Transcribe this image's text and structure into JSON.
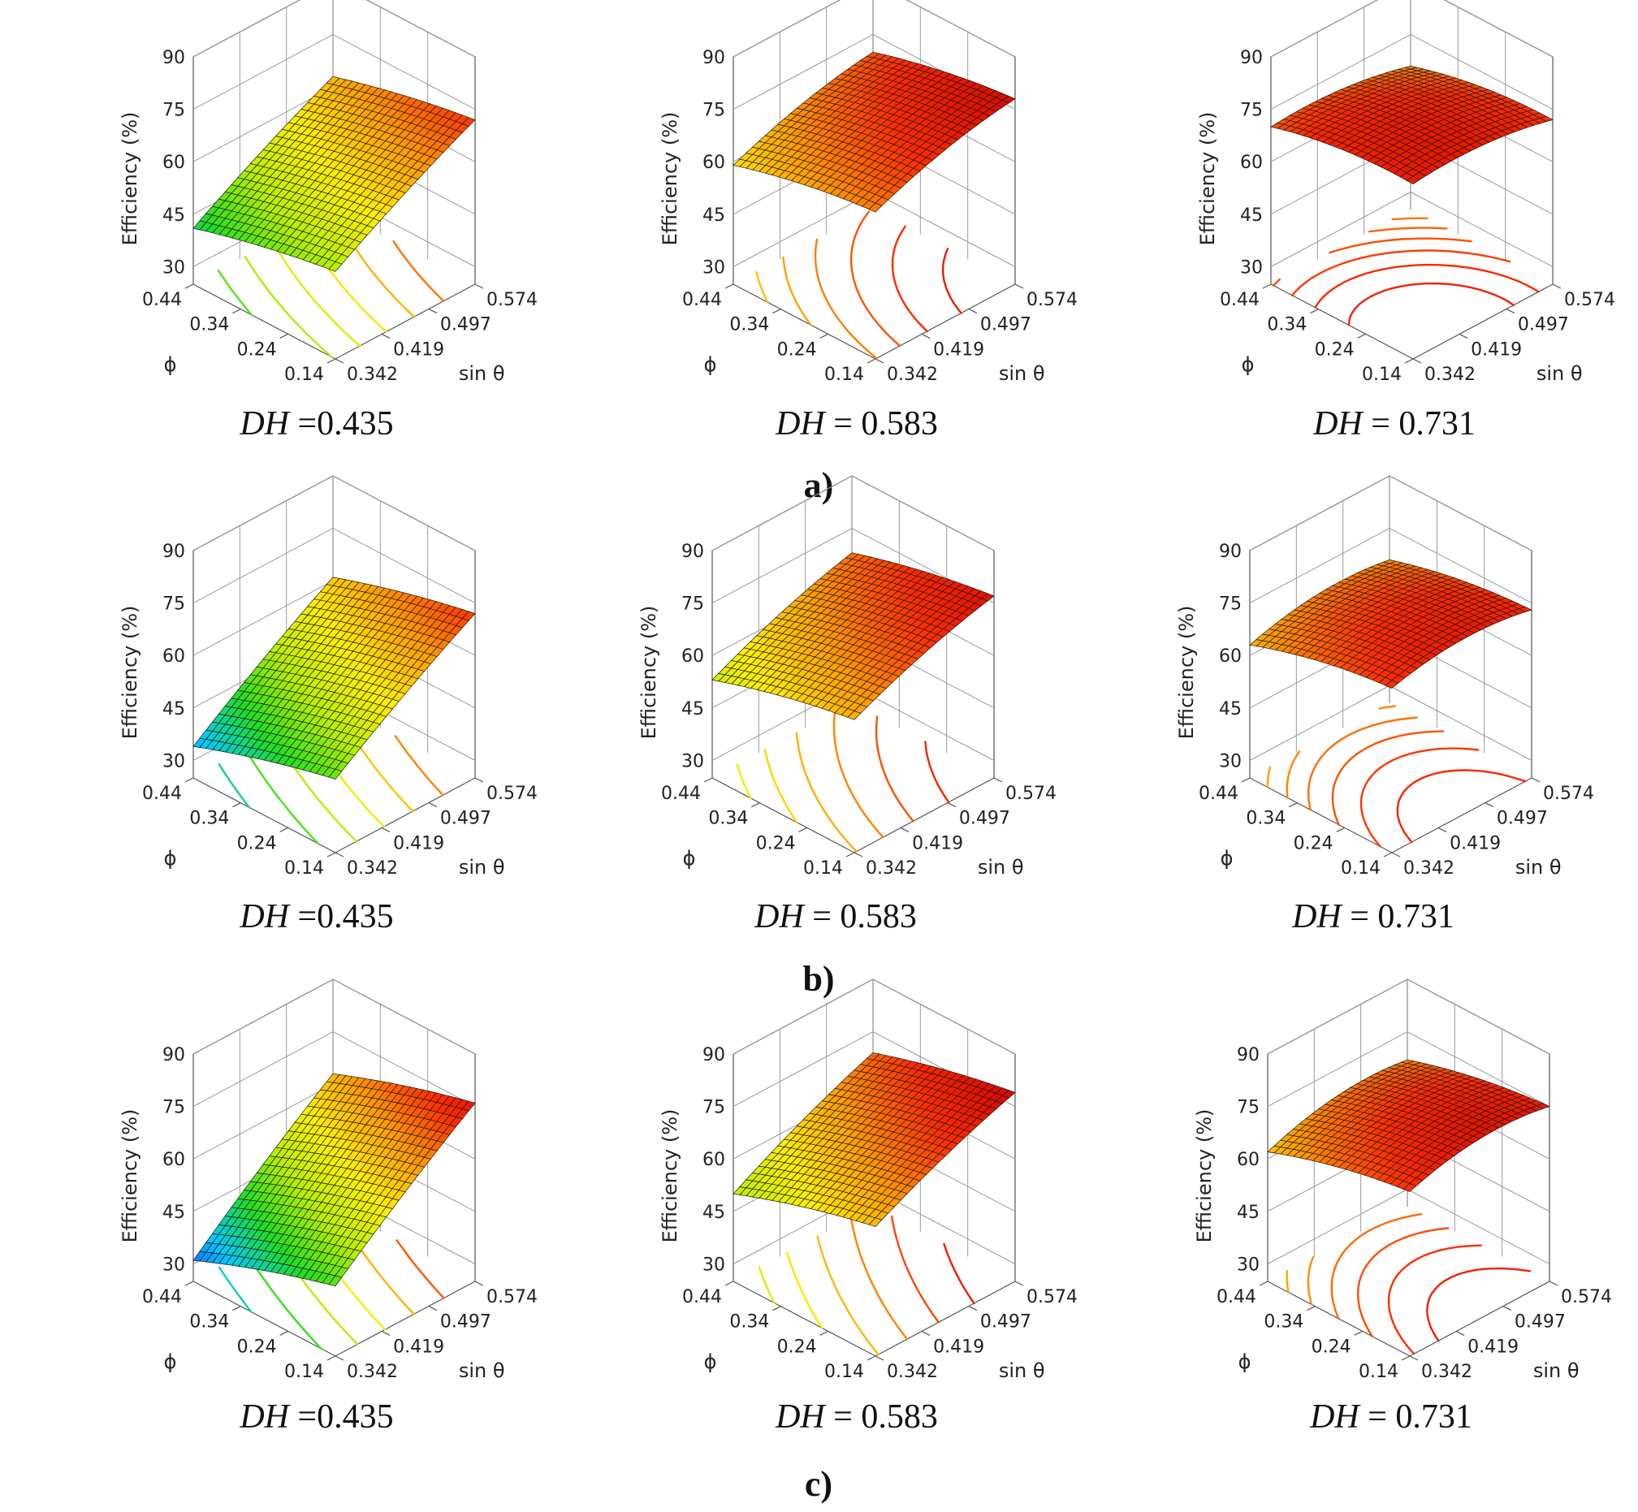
{
  "figure": {
    "row_labels": [
      "a)",
      "b)",
      "c)"
    ],
    "colormap": [
      "#1a3cff",
      "#00c8ff",
      "#22dd22",
      "#b8ee00",
      "#ffee00",
      "#ff9a00",
      "#ff2a00",
      "#cc0000"
    ]
  },
  "chart_data": [
    {
      "type": "surface3d",
      "row": "a)",
      "col": 0,
      "caption_var": "DH",
      "caption_eq": " =0.435",
      "zlabel": "Efficiency (%)",
      "xlabel": "ϕ",
      "ylabel": "sin θ",
      "zticks": [
        "90",
        "75",
        "60",
        "45",
        "30"
      ],
      "xticks": [
        "0.44",
        "0.34",
        "0.24",
        "0.14"
      ],
      "yticks": [
        "0.342",
        "0.419",
        "0.497",
        "0.574"
      ],
      "zlim": [
        25,
        90
      ],
      "xlim": [
        0.14,
        0.44
      ],
      "ylim": [
        0.342,
        0.574
      ],
      "corner_values": {
        "phi0.14_sin0.342": 50,
        "phi0.44_sin0.342": 41,
        "phi0.14_sin0.574": 72,
        "phi0.44_sin0.574": 63
      },
      "peak_sin": 0.574,
      "phi_peak": 0.14
    },
    {
      "type": "surface3d",
      "row": "a)",
      "col": 1,
      "caption_var": "DH",
      "caption_eq": " = 0.583",
      "zlabel": "Efficiency (%)",
      "xlabel": "ϕ",
      "ylabel": "sin θ",
      "zticks": [
        "90",
        "75",
        "60",
        "45",
        "30"
      ],
      "xticks": [
        "0.44",
        "0.34",
        "0.24",
        "0.14"
      ],
      "yticks": [
        "0.342",
        "0.419",
        "0.497",
        "0.574"
      ],
      "zlim": [
        25,
        90
      ],
      "xlim": [
        0.14,
        0.44
      ],
      "ylim": [
        0.342,
        0.574
      ],
      "corner_values": {
        "phi0.14_sin0.342": 67,
        "phi0.44_sin0.342": 59,
        "phi0.14_sin0.574": 78,
        "phi0.44_sin0.574": 70
      },
      "peak_sin": 0.5,
      "phi_peak": 0.19
    },
    {
      "type": "surface3d",
      "row": "a)",
      "col": 2,
      "caption_var": "DH",
      "caption_eq": " = 0.731",
      "zlabel": "Efficiency (%)",
      "xlabel": "ϕ",
      "ylabel": "sin θ",
      "zticks": [
        "90",
        "75",
        "60",
        "45",
        "30"
      ],
      "xticks": [
        "0.44",
        "0.34",
        "0.24",
        "0.14"
      ],
      "yticks": [
        "0.342",
        "0.419",
        "0.497",
        "0.574"
      ],
      "zlim": [
        25,
        90
      ],
      "xlim": [
        0.14,
        0.44
      ],
      "ylim": [
        0.342,
        0.574
      ],
      "corner_values": {
        "phi0.14_sin0.342": 75,
        "phi0.44_sin0.342": 70,
        "phi0.14_sin0.574": 72,
        "phi0.44_sin0.574": 66
      },
      "peak_sin": 0.43,
      "phi_peak": 0.24
    },
    {
      "type": "surface3d",
      "row": "b)",
      "col": 0,
      "caption_var": "DH",
      "caption_eq": " =0.435",
      "zlabel": "Efficiency (%)",
      "xlabel": "ϕ",
      "ylabel": "sin θ",
      "zticks": [
        "90",
        "75",
        "60",
        "45",
        "30"
      ],
      "xticks": [
        "0.44",
        "0.34",
        "0.24",
        "0.14"
      ],
      "yticks": [
        "0.342",
        "0.419",
        "0.497",
        "0.574"
      ],
      "zlim": [
        25,
        90
      ],
      "xlim": [
        0.14,
        0.44
      ],
      "ylim": [
        0.342,
        0.574
      ],
      "corner_values": {
        "phi0.14_sin0.342": 46,
        "phi0.44_sin0.342": 34,
        "phi0.14_sin0.574": 72,
        "phi0.44_sin0.574": 61
      },
      "peak_sin": 0.574,
      "phi_peak": 0.14
    },
    {
      "type": "surface3d",
      "row": "b)",
      "col": 1,
      "caption_var": "DH",
      "caption_eq": " = 0.583",
      "zlabel": "Efficiency (%)",
      "xlabel": "ϕ",
      "ylabel": "sin θ",
      "zticks": [
        "90",
        "75",
        "60",
        "45",
        "30"
      ],
      "xticks": [
        "0.44",
        "0.34",
        "0.24",
        "0.14"
      ],
      "yticks": [
        "0.342",
        "0.419",
        "0.497",
        "0.574"
      ],
      "zlim": [
        25,
        90
      ],
      "xlim": [
        0.14,
        0.44
      ],
      "ylim": [
        0.342,
        0.574
      ],
      "corner_values": {
        "phi0.14_sin0.342": 63,
        "phi0.44_sin0.342": 53,
        "phi0.14_sin0.574": 77,
        "phi0.44_sin0.574": 68
      },
      "peak_sin": 0.52,
      "phi_peak": 0.17
    },
    {
      "type": "surface3d",
      "row": "b)",
      "col": 2,
      "caption_var": "DH",
      "caption_eq": " = 0.731",
      "zlabel": "Efficiency (%)",
      "xlabel": "ϕ",
      "ylabel": "sin θ",
      "zticks": [
        "90",
        "75",
        "60",
        "45",
        "30"
      ],
      "xticks": [
        "0.44",
        "0.34",
        "0.24",
        "0.14"
      ],
      "yticks": [
        "0.342",
        "0.419",
        "0.497",
        "0.574"
      ],
      "zlim": [
        25,
        90
      ],
      "xlim": [
        0.14,
        0.44
      ],
      "ylim": [
        0.342,
        0.574
      ],
      "corner_values": {
        "phi0.14_sin0.342": 72,
        "phi0.44_sin0.342": 63,
        "phi0.14_sin0.574": 73,
        "phi0.44_sin0.574": 66
      },
      "peak_sin": 0.45,
      "phi_peak": 0.22
    },
    {
      "type": "surface3d",
      "row": "c)",
      "col": 0,
      "caption_var": "DH",
      "caption_eq": " =0.435",
      "zlabel": "Efficiency (%)",
      "xlabel": "ϕ",
      "ylabel": "sin θ",
      "zticks": [
        "90",
        "75",
        "60",
        "45",
        "30"
      ],
      "xticks": [
        "0.44",
        "0.34",
        "0.24",
        "0.14"
      ],
      "yticks": [
        "0.342",
        "0.419",
        "0.497",
        "0.574"
      ],
      "zlim": [
        25,
        90
      ],
      "xlim": [
        0.14,
        0.44
      ],
      "ylim": [
        0.342,
        0.574
      ],
      "corner_values": {
        "phi0.14_sin0.342": 45,
        "phi0.44_sin0.342": 31,
        "phi0.14_sin0.574": 76,
        "phi0.44_sin0.574": 63
      },
      "peak_sin": 0.574,
      "phi_peak": 0.14
    },
    {
      "type": "surface3d",
      "row": "c)",
      "col": 1,
      "caption_var": "DH",
      "caption_eq": " = 0.583",
      "zlabel": "Efficiency (%)",
      "xlabel": "ϕ",
      "ylabel": "sin θ",
      "zticks": [
        "90",
        "75",
        "60",
        "45",
        "30"
      ],
      "xticks": [
        "0.44",
        "0.34",
        "0.24",
        "0.14"
      ],
      "yticks": [
        "0.342",
        "0.419",
        "0.497",
        "0.574"
      ],
      "zlim": [
        25,
        90
      ],
      "xlim": [
        0.14,
        0.44
      ],
      "ylim": [
        0.342,
        0.574
      ],
      "corner_values": {
        "phi0.14_sin0.342": 62,
        "phi0.44_sin0.342": 50,
        "phi0.14_sin0.574": 79,
        "phi0.44_sin0.574": 69
      },
      "peak_sin": 0.54,
      "phi_peak": 0.16
    },
    {
      "type": "surface3d",
      "row": "c)",
      "col": 2,
      "caption_var": "DH",
      "caption_eq": " = 0.731",
      "zlabel": "Efficiency (%)",
      "xlabel": "ϕ",
      "ylabel": "sin θ",
      "zticks": [
        "90",
        "75",
        "60",
        "45",
        "30"
      ],
      "xticks": [
        "0.44",
        "0.34",
        "0.24",
        "0.14"
      ],
      "yticks": [
        "0.342",
        "0.419",
        "0.497",
        "0.574"
      ],
      "zlim": [
        25,
        90
      ],
      "xlim": [
        0.14,
        0.44
      ],
      "ylim": [
        0.342,
        0.574
      ],
      "corner_values": {
        "phi0.14_sin0.342": 72,
        "phi0.44_sin0.342": 62,
        "phi0.14_sin0.574": 75,
        "phi0.44_sin0.574": 67
      },
      "peak_sin": 0.46,
      "phi_peak": 0.21
    }
  ]
}
